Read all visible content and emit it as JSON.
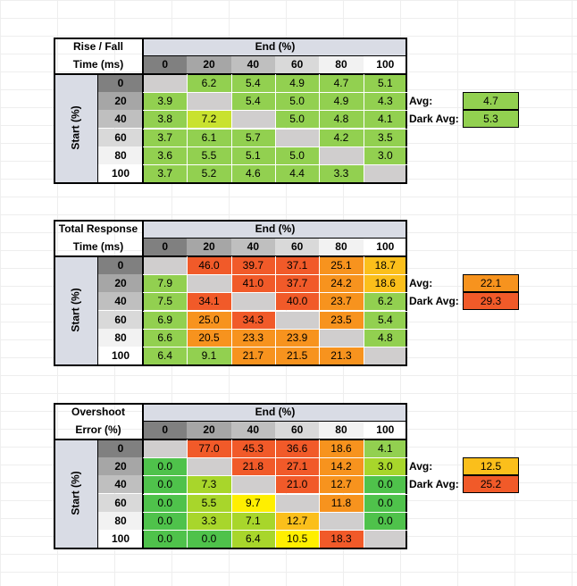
{
  "start_axis_label": "Start (%)",
  "end_axis_label": "End (%)",
  "levels": [
    "0",
    "20",
    "40",
    "60",
    "80",
    "100"
  ],
  "avg_label": "Avg:",
  "dark_avg_label": "Dark Avg:",
  "colors": {
    "green": "#92d050",
    "lightgreen": "#a8d62b",
    "green2": "#4fc24b",
    "yellowgreen": "#c9e22f",
    "yellow": "#ffef00",
    "amber": "#fbbf1b",
    "orange": "#f7931e",
    "red": "#f15a29",
    "empty": "#d0cece"
  },
  "tables": [
    {
      "title_line1": "Rise / Fall",
      "title_line2": "Time (ms)",
      "rows": [
        [
          "",
          "6.2",
          "5.4",
          "4.9",
          "4.7",
          "5.1"
        ],
        [
          "3.9",
          "",
          "5.4",
          "5.0",
          "4.9",
          "4.3"
        ],
        [
          "3.8",
          "7.2",
          "",
          "5.0",
          "4.8",
          "4.1"
        ],
        [
          "3.7",
          "6.1",
          "5.7",
          "",
          "4.2",
          "3.5"
        ],
        [
          "3.6",
          "5.5",
          "5.1",
          "5.0",
          "",
          "3.0"
        ],
        [
          "3.7",
          "5.2",
          "4.6",
          "4.4",
          "3.3",
          ""
        ]
      ],
      "row_colors": [
        [
          "empty",
          "green",
          "green",
          "green",
          "green",
          "green"
        ],
        [
          "green",
          "empty",
          "green",
          "green",
          "green",
          "green"
        ],
        [
          "green",
          "yellowgreen",
          "empty",
          "green",
          "green",
          "green"
        ],
        [
          "green",
          "green",
          "green",
          "empty",
          "green",
          "green"
        ],
        [
          "green",
          "green",
          "green",
          "green",
          "empty",
          "green"
        ],
        [
          "green",
          "green",
          "green",
          "green",
          "green",
          "empty"
        ]
      ],
      "avg": "4.7",
      "dark_avg": "5.3",
      "avg_color": "green",
      "dark_avg_color": "green"
    },
    {
      "title_line1": "Total Response",
      "title_line2": "Time (ms)",
      "rows": [
        [
          "",
          "46.0",
          "39.7",
          "37.1",
          "25.1",
          "18.7"
        ],
        [
          "7.9",
          "",
          "41.0",
          "37.7",
          "24.2",
          "18.6"
        ],
        [
          "7.5",
          "34.1",
          "",
          "40.0",
          "23.7",
          "6.2"
        ],
        [
          "6.9",
          "25.0",
          "34.3",
          "",
          "23.5",
          "5.4"
        ],
        [
          "6.6",
          "20.5",
          "23.3",
          "23.9",
          "",
          "4.8"
        ],
        [
          "6.4",
          "9.1",
          "21.7",
          "21.5",
          "21.3",
          ""
        ]
      ],
      "row_colors": [
        [
          "empty",
          "red",
          "red",
          "red",
          "orange",
          "amber"
        ],
        [
          "green",
          "empty",
          "red",
          "red",
          "orange",
          "amber"
        ],
        [
          "green",
          "red",
          "empty",
          "red",
          "orange",
          "green"
        ],
        [
          "green",
          "orange",
          "red",
          "empty",
          "orange",
          "green"
        ],
        [
          "green",
          "orange",
          "orange",
          "orange",
          "empty",
          "green"
        ],
        [
          "green",
          "green",
          "orange",
          "orange",
          "orange",
          "empty"
        ]
      ],
      "avg": "22.1",
      "dark_avg": "29.3",
      "avg_color": "orange",
      "dark_avg_color": "red"
    },
    {
      "title_line1": "Overshoot",
      "title_line2": "Error (%)",
      "rows": [
        [
          "",
          "77.0",
          "45.3",
          "36.6",
          "18.6",
          "4.1"
        ],
        [
          "0.0",
          "",
          "21.8",
          "27.1",
          "14.2",
          "3.0"
        ],
        [
          "0.0",
          "7.3",
          "",
          "21.0",
          "12.7",
          "0.0"
        ],
        [
          "0.0",
          "5.5",
          "9.7",
          "",
          "11.8",
          "0.0"
        ],
        [
          "0.0",
          "3.3",
          "7.1",
          "12.7",
          "",
          "0.0"
        ],
        [
          "0.0",
          "0.0",
          "6.4",
          "10.5",
          "18.3",
          ""
        ]
      ],
      "row_colors": [
        [
          "empty",
          "red",
          "red",
          "red",
          "orange",
          "green"
        ],
        [
          "green2",
          "empty",
          "red",
          "red",
          "orange",
          "lightgreen"
        ],
        [
          "green2",
          "lightgreen",
          "empty",
          "red",
          "orange",
          "green2"
        ],
        [
          "green2",
          "lightgreen",
          "yellow",
          "empty",
          "orange",
          "green2"
        ],
        [
          "green2",
          "lightgreen",
          "lightgreen",
          "amber",
          "empty",
          "green2"
        ],
        [
          "green2",
          "green2",
          "lightgreen",
          "yellow",
          "red",
          "empty"
        ]
      ],
      "avg": "12.5",
      "dark_avg": "25.2",
      "avg_color": "amber",
      "dark_avg_color": "red"
    }
  ]
}
